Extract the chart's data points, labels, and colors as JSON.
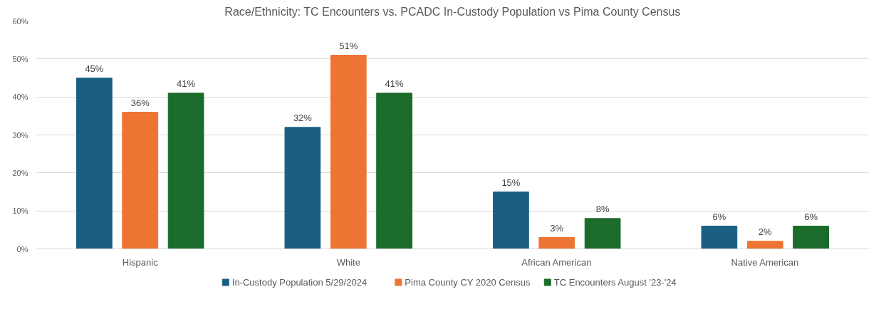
{
  "chart_data": {
    "type": "bar",
    "title": "Race/Ethnicity: TC Encounters vs. PCADC In-Custody Population vs Pima County Census",
    "categories": [
      "Hispanic",
      "White",
      "African American",
      "Native American"
    ],
    "series": [
      {
        "name": "In-Custody Population 5/29/2024",
        "color": "#1a5f83",
        "values": [
          45,
          32,
          15,
          6
        ],
        "value_labels": [
          "45%",
          "32%",
          "15%",
          "6%"
        ]
      },
      {
        "name": "Pima County CY 2020 Census",
        "color": "#ed7432",
        "values": [
          36,
          51,
          3,
          2
        ],
        "value_labels": [
          "36%",
          "51%",
          "3%",
          "2%"
        ]
      },
      {
        "name": "TC Encounters August '23-'24",
        "color": "#1b6b2a",
        "values": [
          41,
          41,
          8,
          6
        ],
        "value_labels": [
          "41%",
          "41%",
          "8%",
          "6%"
        ]
      }
    ],
    "ylim": [
      0,
      60
    ],
    "yticks": [
      {
        "value": 0,
        "label": "0%"
      },
      {
        "value": 10,
        "label": "10%"
      },
      {
        "value": 20,
        "label": "20%"
      },
      {
        "value": 30,
        "label": "30%"
      },
      {
        "value": 40,
        "label": "40%"
      },
      {
        "value": 50,
        "label": "50%"
      },
      {
        "value": 60,
        "label": "60%"
      }
    ],
    "grid": "y",
    "legend": "bottom"
  }
}
